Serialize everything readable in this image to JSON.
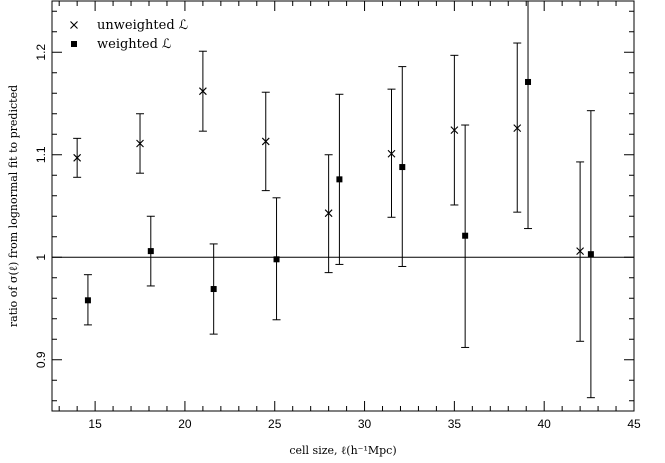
{
  "chart_data": {
    "type": "scatter",
    "xlabel": "cell size, ℓ(h⁻¹Mpc)",
    "ylabel": "ratio of σ(ℓ) from lognormal fit to predicted",
    "xlim": [
      12.6,
      45
    ],
    "ylim": [
      0.85,
      1.25
    ],
    "xticks": [
      "15",
      "20",
      "25",
      "30",
      "35",
      "40",
      "45"
    ],
    "yticks": [
      "0.9",
      "1",
      "1.1",
      "1.2"
    ],
    "reference_line": 1.0,
    "legend_position": "top-left",
    "series": [
      {
        "name": "unweighted ℒ",
        "marker": "cross",
        "points": [
          {
            "x": 14.0,
            "y": 1.097,
            "lo": 1.078,
            "hi": 1.116
          },
          {
            "x": 17.5,
            "y": 1.111,
            "lo": 1.082,
            "hi": 1.14
          },
          {
            "x": 21.0,
            "y": 1.162,
            "lo": 1.123,
            "hi": 1.201
          },
          {
            "x": 24.5,
            "y": 1.113,
            "lo": 1.065,
            "hi": 1.161
          },
          {
            "x": 28.0,
            "y": 1.043,
            "lo": 0.985,
            "hi": 1.1
          },
          {
            "x": 31.5,
            "y": 1.101,
            "lo": 1.039,
            "hi": 1.164
          },
          {
            "x": 35.0,
            "y": 1.124,
            "lo": 1.051,
            "hi": 1.197
          },
          {
            "x": 38.5,
            "y": 1.126,
            "lo": 1.044,
            "hi": 1.209
          },
          {
            "x": 42.0,
            "y": 1.006,
            "lo": 0.918,
            "hi": 1.093
          }
        ]
      },
      {
        "name": "weighted ℒ",
        "marker": "square",
        "points": [
          {
            "x": 14.6,
            "y": 0.958,
            "lo": 0.934,
            "hi": 0.983
          },
          {
            "x": 18.1,
            "y": 1.006,
            "lo": 0.972,
            "hi": 1.04
          },
          {
            "x": 21.6,
            "y": 0.969,
            "lo": 0.925,
            "hi": 1.013
          },
          {
            "x": 25.1,
            "y": 0.998,
            "lo": 0.939,
            "hi": 1.058
          },
          {
            "x": 28.6,
            "y": 1.076,
            "lo": 0.993,
            "hi": 1.159
          },
          {
            "x": 32.1,
            "y": 1.088,
            "lo": 0.991,
            "hi": 1.186
          },
          {
            "x": 35.6,
            "y": 1.021,
            "lo": 0.912,
            "hi": 1.129
          },
          {
            "x": 39.1,
            "y": 1.171,
            "lo": 1.028,
            "hi": 1.25
          },
          {
            "x": 42.6,
            "y": 1.003,
            "lo": 0.863,
            "hi": 1.143
          }
        ]
      }
    ]
  }
}
